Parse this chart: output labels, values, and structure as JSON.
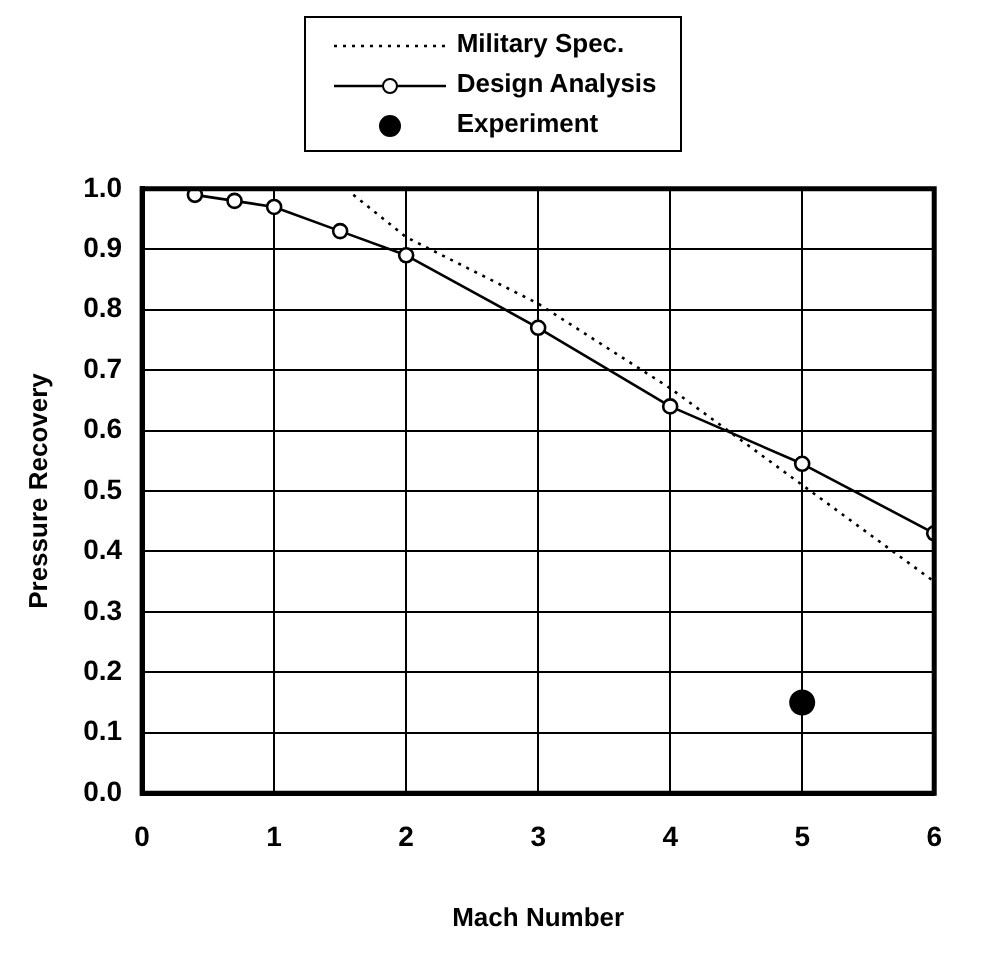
{
  "chart_data": {
    "type": "line",
    "xlabel": "Mach Number",
    "ylabel": "Pressure Recovery",
    "xlim": [
      0,
      6
    ],
    "ylim": [
      0,
      1
    ],
    "xticks": [
      0,
      1,
      2,
      3,
      4,
      5,
      6
    ],
    "yticks": [
      {
        "value": 0,
        "label": "0.0"
      },
      {
        "value": 0.1,
        "label": "0.1"
      },
      {
        "value": 0.2,
        "label": "0.2"
      },
      {
        "value": 0.3,
        "label": "0.3"
      },
      {
        "value": 0.4,
        "label": "0.4"
      },
      {
        "value": 0.5,
        "label": "0.5"
      },
      {
        "value": 0.6,
        "label": "0.6"
      },
      {
        "value": 0.7,
        "label": "0.7"
      },
      {
        "value": 0.8,
        "label": "0.8"
      },
      {
        "value": 0.9,
        "label": "0.9"
      },
      {
        "value": 1,
        "label": "1.0"
      }
    ],
    "grid": true,
    "legend": "top",
    "series": [
      {
        "name": "Military Spec.",
        "line_style": "dotted",
        "marker": "none",
        "color": "#000000",
        "x": [
          1.6,
          2,
          3,
          4,
          5,
          6
        ],
        "values": [
          0.99,
          0.92,
          0.81,
          0.67,
          0.51,
          0.35
        ]
      },
      {
        "name": "Design Analysis",
        "line_style": "solid",
        "marker": "circle",
        "color": "#000000",
        "x": [
          0.4,
          0.7,
          1,
          1.5,
          2,
          3,
          4,
          5,
          6
        ],
        "values": [
          0.99,
          0.98,
          0.97,
          0.93,
          0.89,
          0.77,
          0.64,
          0.545,
          0.43
        ]
      },
      {
        "name": "Experiment",
        "type": "scatter",
        "marker": "circle",
        "color": "#000000",
        "x": [
          5
        ],
        "values": [
          0.15
        ]
      }
    ]
  }
}
